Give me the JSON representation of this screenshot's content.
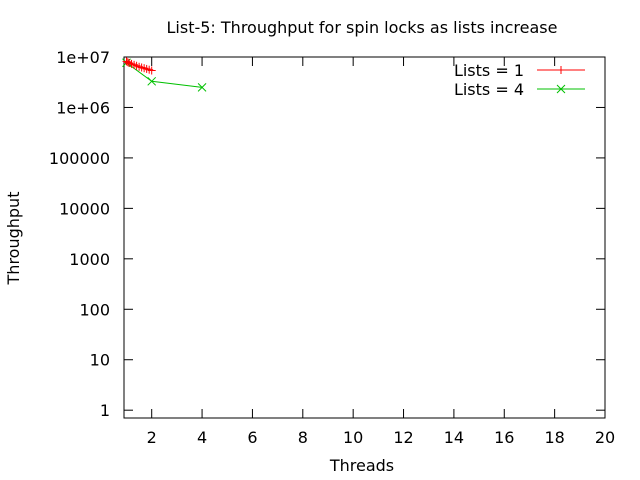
{
  "chart_data": {
    "type": "line",
    "title": "List-5: Throughput for spin locks as lists increase",
    "xlabel": "Threads",
    "ylabel": "Throughput",
    "xlim": [
      0.9,
      20
    ],
    "ylim": [
      0.7,
      10000000
    ],
    "yscale": "log",
    "grid": false,
    "legend_position": "top-right",
    "x_ticks": [
      2,
      4,
      6,
      8,
      10,
      12,
      14,
      16,
      18,
      20
    ],
    "y_ticks": [
      1,
      10,
      100,
      1000,
      10000,
      100000,
      1000000,
      10000000
    ],
    "y_tick_labels": [
      "1",
      "10",
      "100",
      "1000",
      "10000",
      "100000",
      "1e+06",
      "1e+07"
    ],
    "series": [
      {
        "name": "Lists = 1",
        "color": "#ff0000",
        "marker": "plus",
        "x": [
          1,
          1.05,
          1.1,
          1.2,
          1.3,
          1.4,
          1.5,
          1.6,
          1.7,
          1.8,
          1.9,
          2
        ],
        "y": [
          8200000,
          7900000,
          7600000,
          7300000,
          7000000,
          6700000,
          6400000,
          6200000,
          6000000,
          5800000,
          5600000,
          5400000
        ]
      },
      {
        "name": "Lists = 4",
        "color": "#00c000",
        "marker": "cross",
        "x": [
          1,
          2,
          4
        ],
        "y": [
          7700000,
          3300000,
          2500000
        ]
      }
    ]
  }
}
